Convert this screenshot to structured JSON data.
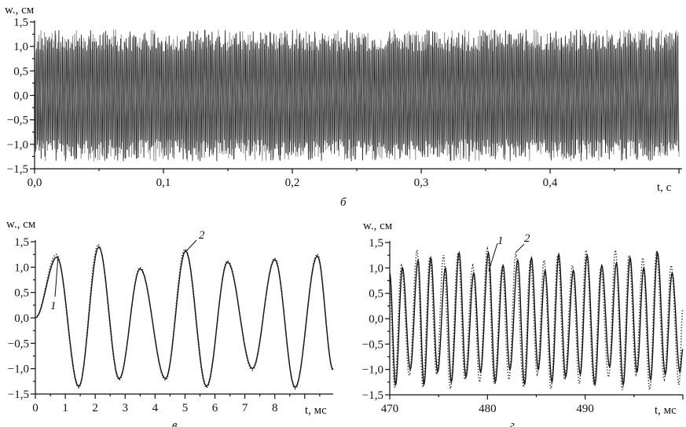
{
  "chart_data": [
    {
      "id": "b",
      "type": "line",
      "caption": "б",
      "ylabel": "w., см",
      "xlabel": "t, с",
      "xlim": [
        0,
        0.5
      ],
      "ylim": [
        -1.5,
        1.5
      ],
      "xticks": [
        "0,0",
        "0,1",
        "0,2",
        "0,3",
        "0,4"
      ],
      "xtick_values": [
        0,
        0.1,
        0.2,
        0.3,
        0.4
      ],
      "yticks": [
        "1,5",
        "1,0",
        "0,5",
        "0,0",
        "-0,5",
        "-1,0",
        "-1,5"
      ],
      "ytick_values": [
        1.5,
        1.0,
        0.5,
        0.0,
        -0.5,
        -1.0,
        -1.5
      ],
      "series": [
        {
          "style": "solid",
          "color": "#111111",
          "period_ms": 1.45,
          "amplitude_range": [
            0.9,
            1.35
          ]
        },
        {
          "style": "solid",
          "color": "#777777",
          "period_ms": 1.45,
          "amplitude_range": [
            0.9,
            1.35
          ]
        }
      ]
    },
    {
      "id": "v",
      "type": "line",
      "caption": "в",
      "ylabel": "w., см",
      "xlabel": "t, мс",
      "xlim": [
        0,
        9.95
      ],
      "ylim": [
        -1.5,
        1.5
      ],
      "xticks": [
        "0",
        "1",
        "2",
        "3",
        "4",
        "5",
        "6",
        "7",
        "8"
      ],
      "xtick_values": [
        0,
        1,
        2,
        3,
        4,
        5,
        6,
        7,
        8
      ],
      "yticks": [
        "1,5",
        "1,0",
        "0,5",
        "0,0",
        "-0,5",
        "-1,0",
        "-1,5"
      ],
      "ytick_values": [
        1.5,
        1.0,
        0.5,
        0.0,
        -0.5,
        -1.0,
        -1.5
      ],
      "annotations": [
        "1",
        "2"
      ],
      "series": [
        {
          "label": "1",
          "style": "solid",
          "extrema": [
            [
              0,
              0
            ],
            [
              0.72,
              1.2
            ],
            [
              1.45,
              -1.35
            ],
            [
              2.12,
              1.4
            ],
            [
              2.8,
              -1.2
            ],
            [
              3.5,
              0.97
            ],
            [
              4.35,
              -1.2
            ],
            [
              5.02,
              1.32
            ],
            [
              5.72,
              -1.35
            ],
            [
              6.42,
              1.1
            ],
            [
              7.25,
              -1.0
            ],
            [
              8.0,
              1.15
            ],
            [
              8.68,
              -1.37
            ],
            [
              9.42,
              1.22
            ],
            [
              9.95,
              -1.02
            ]
          ]
        },
        {
          "label": "2",
          "style": "dotted",
          "extrema": [
            [
              0,
              0
            ],
            [
              0.7,
              1.25
            ],
            [
              1.45,
              -1.38
            ],
            [
              2.1,
              1.45
            ],
            [
              2.8,
              -1.23
            ],
            [
              3.5,
              1.0
            ],
            [
              4.35,
              -1.23
            ],
            [
              5.0,
              1.36
            ],
            [
              5.72,
              -1.38
            ],
            [
              6.42,
              1.13
            ],
            [
              7.25,
              -1.03
            ],
            [
              8.0,
              1.18
            ],
            [
              8.68,
              -1.4
            ],
            [
              9.42,
              1.26
            ],
            [
              9.95,
              -1.05
            ]
          ]
        }
      ]
    },
    {
      "id": "g",
      "type": "line",
      "caption": "г",
      "ylabel": "w., см",
      "xlabel": "t, мс",
      "xlim": [
        470,
        500
      ],
      "ylim": [
        -1.5,
        1.5
      ],
      "xticks": [
        "470",
        "480",
        "490"
      ],
      "xtick_values": [
        470,
        480,
        490
      ],
      "yticks": [
        "1,5",
        "1,0",
        "0,5",
        "0,0",
        "-0,5",
        "-1,0",
        "-1,5"
      ],
      "ytick_values": [
        1.5,
        1.0,
        0.5,
        0.0,
        -0.5,
        -1.0,
        -1.5
      ],
      "annotations": [
        "1",
        "2"
      ],
      "series": [
        {
          "label": "1",
          "style": "solid",
          "extrema": [
            [
              470,
              0.9
            ],
            [
              470.6,
              -1.3
            ],
            [
              471.3,
              1.0
            ],
            [
              472.1,
              -1.0
            ],
            [
              472.9,
              1.15
            ],
            [
              473.5,
              -1.3
            ],
            [
              474.2,
              1.2
            ],
            [
              474.9,
              -1.05
            ],
            [
              475.7,
              1.0
            ],
            [
              476.3,
              -1.25
            ],
            [
              477.1,
              1.3
            ],
            [
              477.8,
              -1.15
            ],
            [
              478.6,
              0.9
            ],
            [
              479.3,
              -1.05
            ],
            [
              480.1,
              1.3
            ],
            [
              480.8,
              -1.25
            ],
            [
              481.6,
              1.05
            ],
            [
              482.3,
              -1.0
            ],
            [
              483.1,
              1.15
            ],
            [
              483.8,
              -1.3
            ],
            [
              484.5,
              1.2
            ],
            [
              485.2,
              -1.0
            ],
            [
              485.9,
              0.95
            ],
            [
              486.6,
              -1.25
            ],
            [
              487.3,
              1.27
            ],
            [
              488.0,
              -1.15
            ],
            [
              488.8,
              0.95
            ],
            [
              489.5,
              -1.1
            ],
            [
              490.2,
              1.25
            ],
            [
              491.0,
              -1.3
            ],
            [
              491.7,
              1.05
            ],
            [
              492.5,
              -0.95
            ],
            [
              493.2,
              1.1
            ],
            [
              493.9,
              -1.3
            ],
            [
              494.6,
              1.2
            ],
            [
              495.3,
              -1.05
            ],
            [
              496.0,
              1.0
            ],
            [
              496.7,
              -1.2
            ],
            [
              497.4,
              1.3
            ],
            [
              498.2,
              -1.1
            ],
            [
              498.9,
              0.9
            ],
            [
              499.7,
              -1.05
            ],
            [
              500,
              -0.6
            ]
          ]
        },
        {
          "label": "2",
          "style": "dotted",
          "extrema": [
            [
              470,
              0.6
            ],
            [
              470.5,
              -1.35
            ],
            [
              471.2,
              1.05
            ],
            [
              472.0,
              -1.12
            ],
            [
              472.8,
              1.35
            ],
            [
              473.4,
              -1.35
            ],
            [
              474.1,
              1.2
            ],
            [
              474.8,
              -1.1
            ],
            [
              475.5,
              1.25
            ],
            [
              476.2,
              -1.38
            ],
            [
              477.0,
              1.3
            ],
            [
              477.7,
              -1.2
            ],
            [
              478.5,
              1.05
            ],
            [
              479.2,
              -1.25
            ],
            [
              480.0,
              1.38
            ],
            [
              480.7,
              -1.28
            ],
            [
              481.5,
              1.0
            ],
            [
              482.2,
              -1.2
            ],
            [
              482.9,
              1.28
            ],
            [
              483.7,
              -1.35
            ],
            [
              484.4,
              1.15
            ],
            [
              485.1,
              -1.1
            ],
            [
              485.8,
              1.15
            ],
            [
              486.5,
              -1.38
            ],
            [
              487.2,
              1.25
            ],
            [
              487.9,
              -1.2
            ],
            [
              488.7,
              1.05
            ],
            [
              489.4,
              -1.28
            ],
            [
              490.1,
              1.35
            ],
            [
              490.9,
              -1.3
            ],
            [
              491.6,
              1.0
            ],
            [
              492.4,
              -1.15
            ],
            [
              493.1,
              1.35
            ],
            [
              493.8,
              -1.4
            ],
            [
              494.5,
              1.25
            ],
            [
              495.2,
              -1.1
            ],
            [
              495.9,
              1.2
            ],
            [
              496.6,
              -1.4
            ],
            [
              497.3,
              1.3
            ],
            [
              498.1,
              -1.2
            ],
            [
              498.8,
              1.05
            ],
            [
              499.6,
              -1.3
            ],
            [
              500,
              0.2
            ]
          ]
        }
      ]
    }
  ]
}
